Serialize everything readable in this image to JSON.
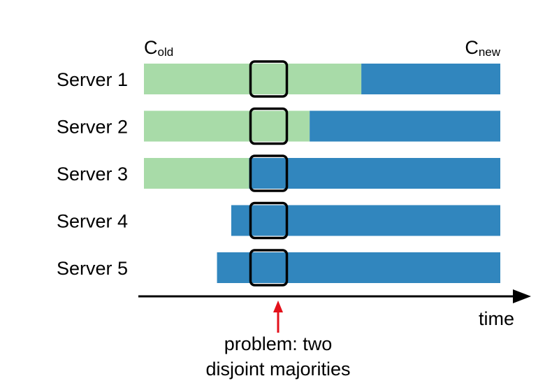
{
  "colors": {
    "old_config": "#a8dba8",
    "new_config": "#3186be",
    "highlight_stroke": "#000000",
    "axis": "#000000",
    "problem_arrow": "#e3111b",
    "background": "#ffffff"
  },
  "legend": {
    "old": {
      "base": "C",
      "sub": "old"
    },
    "new": {
      "base": "C",
      "sub": "new"
    }
  },
  "servers": [
    {
      "label": "Server 1",
      "old_start": 0.0,
      "switch_at": 0.61,
      "end": 1.0
    },
    {
      "label": "Server 2",
      "old_start": 0.0,
      "switch_at": 0.465,
      "end": 1.0
    },
    {
      "label": "Server 3",
      "old_start": 0.0,
      "switch_at": 0.295,
      "end": 1.0
    },
    {
      "label": "Server 4",
      "old_start": null,
      "switch_at": 0.245,
      "end": 1.0
    },
    {
      "label": "Server 5",
      "old_start": null,
      "switch_at": 0.205,
      "end": 1.0
    }
  ],
  "highlight_time": 0.35,
  "axis": {
    "label": "time"
  },
  "annotation": {
    "line1": "problem: two",
    "line2": "disjoint majorities"
  }
}
